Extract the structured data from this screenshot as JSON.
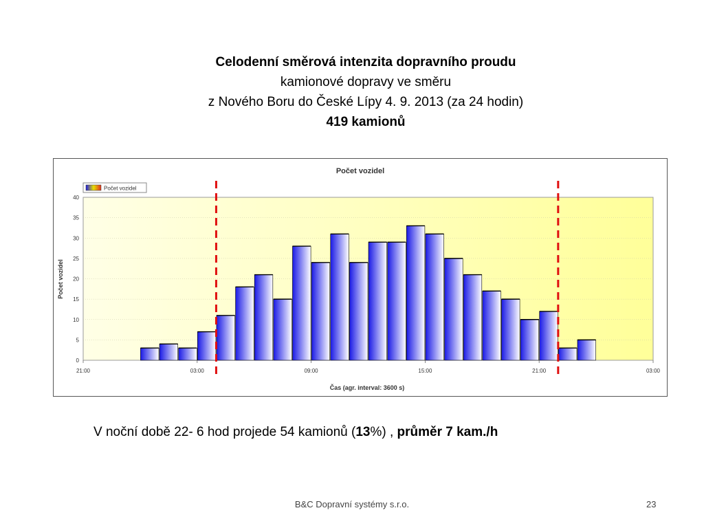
{
  "slide": {
    "title_line1": "Celodenní směrová intenzita dopravního proudu",
    "title_line2": "kamionové dopravy  ve směru",
    "title_line3": "z Nového Boru do České Lípy  4. 9. 2013 (za 24 hodin)",
    "title_line4": "419 kamionů",
    "summary_part1": "V noční době  22- 6 hod  projede 54 kamionů (",
    "summary_bold1": "13",
    "summary_part2": "%) ,   ",
    "summary_bold2": "průměr 7 kam./h",
    "footer": "B&C Dopravní systémy s.r.o.",
    "page_number": "23"
  },
  "chart_data": {
    "type": "bar",
    "title": "Počet vozidel",
    "xlabel": "Čas (agr. interval: 3600 s)",
    "ylabel": "Počet vozidel",
    "legend": "Počet vozidel",
    "legend_position": "top-left",
    "grid": true,
    "ylim": [
      0,
      40
    ],
    "yticks": [
      "0",
      "5",
      "10",
      "15",
      "20",
      "25",
      "30",
      "35",
      "40"
    ],
    "xlim_hours": [
      0,
      30
    ],
    "xtick_labels": [
      "21:00",
      "03:00",
      "09:00",
      "15:00",
      "21:00",
      "03:00"
    ],
    "bar_start_hours": [
      3,
      4,
      5,
      6,
      7,
      8,
      9,
      10,
      11,
      12,
      13,
      14,
      15,
      16,
      17,
      18,
      19,
      20,
      21,
      22,
      23,
      24,
      25,
      26
    ],
    "values": [
      3,
      4,
      3,
      7,
      11,
      18,
      21,
      15,
      28,
      24,
      31,
      24,
      29,
      29,
      33,
      31,
      25,
      21,
      17,
      15,
      10,
      12,
      3,
      5
    ],
    "reference_lines_hours": [
      7,
      25
    ],
    "colors": {
      "bar_dark": "#1a1ae6",
      "bar_light": "#ffffff",
      "plot_bg_left": "#ffffe6",
      "plot_bg_right": "#ffff99",
      "reference_line": "#e01010"
    }
  }
}
